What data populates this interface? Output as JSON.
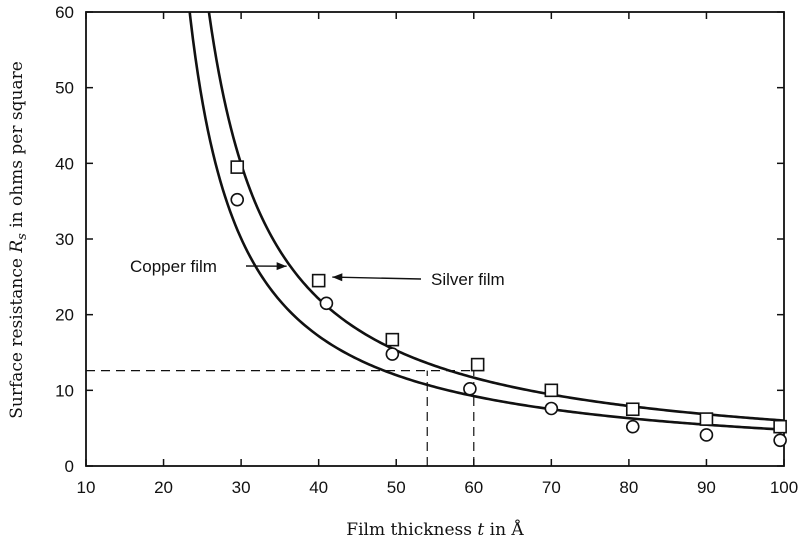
{
  "chart_data": {
    "type": "scatter",
    "title": "",
    "xlabel": "Film thickness t in Å",
    "ylabel": "Surface resistance R_s in ohms per square",
    "xlabel_parts": {
      "pre": "Film thickness ",
      "var": "t",
      "post": " in Å"
    },
    "ylabel_parts": {
      "pre": "Surface resistance ",
      "var": "R",
      "sub": "s",
      "post": " in ohms per square"
    },
    "xlim": [
      10,
      100
    ],
    "ylim": [
      0,
      60
    ],
    "xticks": [
      "10",
      "20",
      "30",
      "40",
      "50",
      "60",
      "70",
      "80",
      "90",
      "100"
    ],
    "yticks": [
      "0",
      "10",
      "20",
      "30",
      "40",
      "50",
      "60"
    ],
    "grid": false,
    "series": [
      {
        "name": "Silver film",
        "marker": "square",
        "points": [
          [
            29.5,
            39.5
          ],
          [
            40,
            24.5
          ],
          [
            49.5,
            16.7
          ],
          [
            60.5,
            13.4
          ],
          [
            70,
            10.0
          ],
          [
            80.5,
            7.5
          ],
          [
            90,
            6.2
          ],
          [
            99.5,
            5.2
          ]
        ],
        "curve": {
          "formula": "y = a / (x - b)",
          "a": 495,
          "b": 17.6
        }
      },
      {
        "name": "Copper film",
        "marker": "circle",
        "points": [
          [
            29.5,
            35.2
          ],
          [
            41,
            21.5
          ],
          [
            49.5,
            14.8
          ],
          [
            59.5,
            10.2
          ],
          [
            70,
            7.6
          ],
          [
            80.5,
            5.2
          ],
          [
            90,
            4.1
          ],
          [
            99.5,
            3.4
          ]
        ],
        "curve": {
          "formula": "y = a / (x - b)",
          "a": 400,
          "b": 16.7
        }
      }
    ],
    "annotations": [
      {
        "text": "Copper film",
        "arrow_to": [
          36,
          26.8
        ]
      },
      {
        "text": "Silver film",
        "arrow_to": [
          41.5,
          25.1
        ]
      }
    ],
    "reference_lines": [
      {
        "y": 12.6,
        "x_end": 60
      },
      {
        "x": 54,
        "y_end": 12.6
      },
      {
        "x": 60,
        "y_end": 12.6
      }
    ]
  }
}
